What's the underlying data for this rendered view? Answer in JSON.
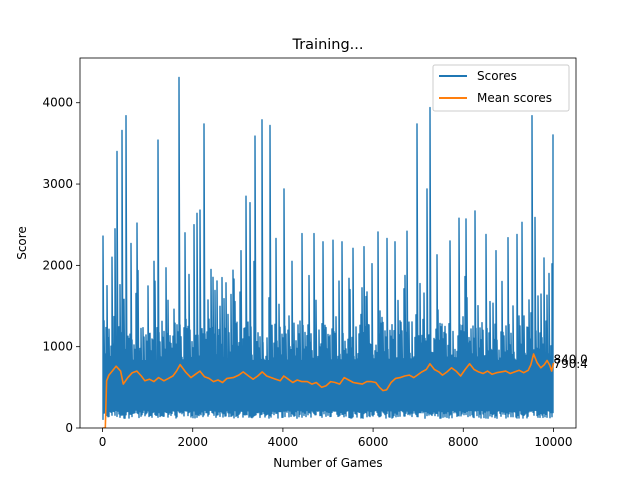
{
  "chart_data": {
    "type": "line",
    "title": "Training...",
    "xlabel": "Number of Games",
    "ylabel": "Score",
    "xlim": [
      -500,
      10500
    ],
    "ylim": [
      0,
      4550
    ],
    "xticks": [
      0,
      2000,
      4000,
      6000,
      8000,
      10000
    ],
    "yticks": [
      0,
      1000,
      2000,
      3000,
      4000
    ],
    "grid": false,
    "legend_position": "top-right",
    "num_points": 10000,
    "series": [
      {
        "name": "Scores",
        "color": "#1f77b4",
        "style": "noisy per-game score",
        "typical_low": 200,
        "typical_high": 1100,
        "first_point": 650,
        "spikes": [
          [
            0,
            2360
          ],
          [
            100,
            1750
          ],
          [
            210,
            2100
          ],
          [
            280,
            2450
          ],
          [
            320,
            3400
          ],
          [
            440,
            3660
          ],
          [
            520,
            3840
          ],
          [
            620,
            2270
          ],
          [
            770,
            2520
          ],
          [
            1150,
            2050
          ],
          [
            1230,
            3540
          ],
          [
            1400,
            1970
          ],
          [
            1690,
            4310
          ],
          [
            1820,
            2400
          ],
          [
            2020,
            2500
          ],
          [
            2100,
            2640
          ],
          [
            2160,
            2680
          ],
          [
            2250,
            3740
          ],
          [
            2410,
            1950
          ],
          [
            2640,
            1850
          ],
          [
            2900,
            1940
          ],
          [
            3080,
            2180
          ],
          [
            3180,
            2850
          ],
          [
            3260,
            2770
          ],
          [
            3390,
            3590
          ],
          [
            3530,
            3790
          ],
          [
            3720,
            3720
          ],
          [
            3850,
            2330
          ],
          [
            4020,
            2940
          ],
          [
            4200,
            2050
          ],
          [
            4420,
            2390
          ],
          [
            4680,
            2390
          ],
          [
            4900,
            2290
          ],
          [
            5120,
            2310
          ],
          [
            5300,
            2290
          ],
          [
            5550,
            2210
          ],
          [
            5790,
            2230
          ],
          [
            5980,
            2020
          ],
          [
            6100,
            2410
          ],
          [
            6300,
            2330
          ],
          [
            6480,
            2290
          ],
          [
            6750,
            2420
          ],
          [
            6980,
            3740
          ],
          [
            7200,
            2940
          ],
          [
            7260,
            3940
          ],
          [
            7420,
            2130
          ],
          [
            7700,
            2300
          ],
          [
            7900,
            2580
          ],
          [
            8050,
            2570
          ],
          [
            8250,
            2670
          ],
          [
            8500,
            2380
          ],
          [
            8720,
            2180
          ],
          [
            9000,
            2340
          ],
          [
            9200,
            2380
          ],
          [
            9310,
            2530
          ],
          [
            9520,
            3840
          ],
          [
            9600,
            2590
          ],
          [
            9800,
            2090
          ],
          [
            10000,
            3610
          ]
        ]
      },
      {
        "name": "Mean scores",
        "color": "#ff7f0e",
        "style": "running mean",
        "points": [
          [
            0,
            0
          ],
          [
            60,
            0
          ],
          [
            90,
            580
          ],
          [
            140,
            650
          ],
          [
            200,
            690
          ],
          [
            300,
            760
          ],
          [
            400,
            700
          ],
          [
            460,
            540
          ],
          [
            560,
            620
          ],
          [
            660,
            680
          ],
          [
            760,
            700
          ],
          [
            860,
            640
          ],
          [
            940,
            580
          ],
          [
            1040,
            600
          ],
          [
            1140,
            570
          ],
          [
            1240,
            620
          ],
          [
            1360,
            580
          ],
          [
            1460,
            610
          ],
          [
            1560,
            640
          ],
          [
            1640,
            700
          ],
          [
            1720,
            780
          ],
          [
            1840,
            690
          ],
          [
            1960,
            620
          ],
          [
            2060,
            660
          ],
          [
            2160,
            700
          ],
          [
            2260,
            630
          ],
          [
            2360,
            610
          ],
          [
            2460,
            570
          ],
          [
            2560,
            590
          ],
          [
            2660,
            560
          ],
          [
            2760,
            610
          ],
          [
            2900,
            620
          ],
          [
            3020,
            650
          ],
          [
            3120,
            690
          ],
          [
            3240,
            640
          ],
          [
            3340,
            600
          ],
          [
            3440,
            640
          ],
          [
            3540,
            690
          ],
          [
            3640,
            640
          ],
          [
            3740,
            620
          ],
          [
            3840,
            600
          ],
          [
            3940,
            580
          ],
          [
            4020,
            640
          ],
          [
            4120,
            600
          ],
          [
            4220,
            560
          ],
          [
            4320,
            590
          ],
          [
            4420,
            570
          ],
          [
            4540,
            570
          ],
          [
            4640,
            540
          ],
          [
            4740,
            560
          ],
          [
            4860,
            500
          ],
          [
            4960,
            520
          ],
          [
            5060,
            570
          ],
          [
            5160,
            560
          ],
          [
            5260,
            540
          ],
          [
            5360,
            620
          ],
          [
            5460,
            590
          ],
          [
            5560,
            560
          ],
          [
            5660,
            550
          ],
          [
            5760,
            540
          ],
          [
            5860,
            570
          ],
          [
            5960,
            570
          ],
          [
            6060,
            560
          ],
          [
            6140,
            500
          ],
          [
            6220,
            460
          ],
          [
            6300,
            470
          ],
          [
            6400,
            560
          ],
          [
            6500,
            610
          ],
          [
            6600,
            620
          ],
          [
            6700,
            640
          ],
          [
            6800,
            650
          ],
          [
            6900,
            620
          ],
          [
            6980,
            650
          ],
          [
            7080,
            690
          ],
          [
            7180,
            720
          ],
          [
            7260,
            790
          ],
          [
            7360,
            720
          ],
          [
            7460,
            690
          ],
          [
            7540,
            650
          ],
          [
            7640,
            690
          ],
          [
            7740,
            740
          ],
          [
            7840,
            700
          ],
          [
            7940,
            640
          ],
          [
            8040,
            720
          ],
          [
            8140,
            790
          ],
          [
            8240,
            720
          ],
          [
            8340,
            690
          ],
          [
            8440,
            670
          ],
          [
            8540,
            700
          ],
          [
            8640,
            660
          ],
          [
            8740,
            680
          ],
          [
            8840,
            690
          ],
          [
            8940,
            700
          ],
          [
            9040,
            670
          ],
          [
            9140,
            690
          ],
          [
            9240,
            710
          ],
          [
            9340,
            680
          ],
          [
            9440,
            710
          ],
          [
            9500,
            780
          ],
          [
            9560,
            910
          ],
          [
            9640,
            800
          ],
          [
            9720,
            740
          ],
          [
            9800,
            780
          ],
          [
            9860,
            830
          ],
          [
            9920,
            770
          ],
          [
            9960,
            700
          ],
          [
            10000,
            800
          ]
        ]
      }
    ],
    "annotations": [
      {
        "text": "840.0",
        "x": 10000,
        "y": 840
      },
      {
        "text": "790.4",
        "x": 10000,
        "y": 790
      }
    ]
  }
}
